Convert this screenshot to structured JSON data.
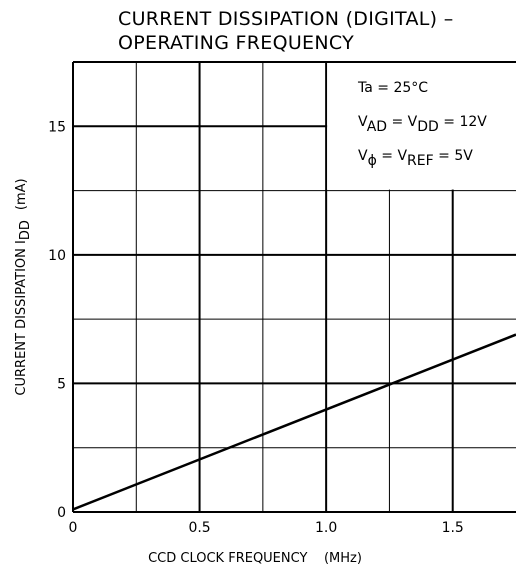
{
  "chart_data": {
    "type": "line",
    "title_lines": [
      "CURRENT DISSIPATION (DIGITAL)  –",
      "OPERATING FREQUENCY"
    ],
    "xlabel": "CCD CLOCK FREQUENCY    (MHz)",
    "ylabel": {
      "main": "CURRENT DISSIPATION I",
      "sub": "DD",
      "unit": "(mA)"
    },
    "xlim": [
      0,
      1.75
    ],
    "ylim": [
      0,
      17.5
    ],
    "x_ticks": [
      {
        "value": 0,
        "label": "0"
      },
      {
        "value": 0.5,
        "label": "0.5"
      },
      {
        "value": 1.0,
        "label": "1.0"
      },
      {
        "value": 1.5,
        "label": "1.5"
      }
    ],
    "y_ticks": [
      {
        "value": 0,
        "label": "0"
      },
      {
        "value": 5,
        "label": "5"
      },
      {
        "value": 10,
        "label": "10"
      },
      {
        "value": 15,
        "label": "15"
      }
    ],
    "x_grid_minor": [
      0.25,
      0.75,
      1.25
    ],
    "y_grid_minor": [
      2.5,
      7.5,
      12.5
    ],
    "grid": true,
    "series": [
      {
        "x": [
          0,
          1.75
        ],
        "y": [
          0.1,
          6.9
        ]
      }
    ],
    "annotations": [
      {
        "parts": [
          {
            "t": "Ta = 25°C"
          }
        ]
      },
      {
        "parts": [
          {
            "t": "V"
          },
          {
            "t": "AD",
            "sub": true
          },
          {
            "t": " = V"
          },
          {
            "t": "DD",
            "sub": true
          },
          {
            "t": " = 12V"
          }
        ]
      },
      {
        "parts": [
          {
            "t": "V"
          },
          {
            "t": "ϕ",
            "sub": true
          },
          {
            "t": " = V"
          },
          {
            "t": "REF",
            "sub": true
          },
          {
            "t": " = 5V"
          }
        ]
      }
    ]
  }
}
